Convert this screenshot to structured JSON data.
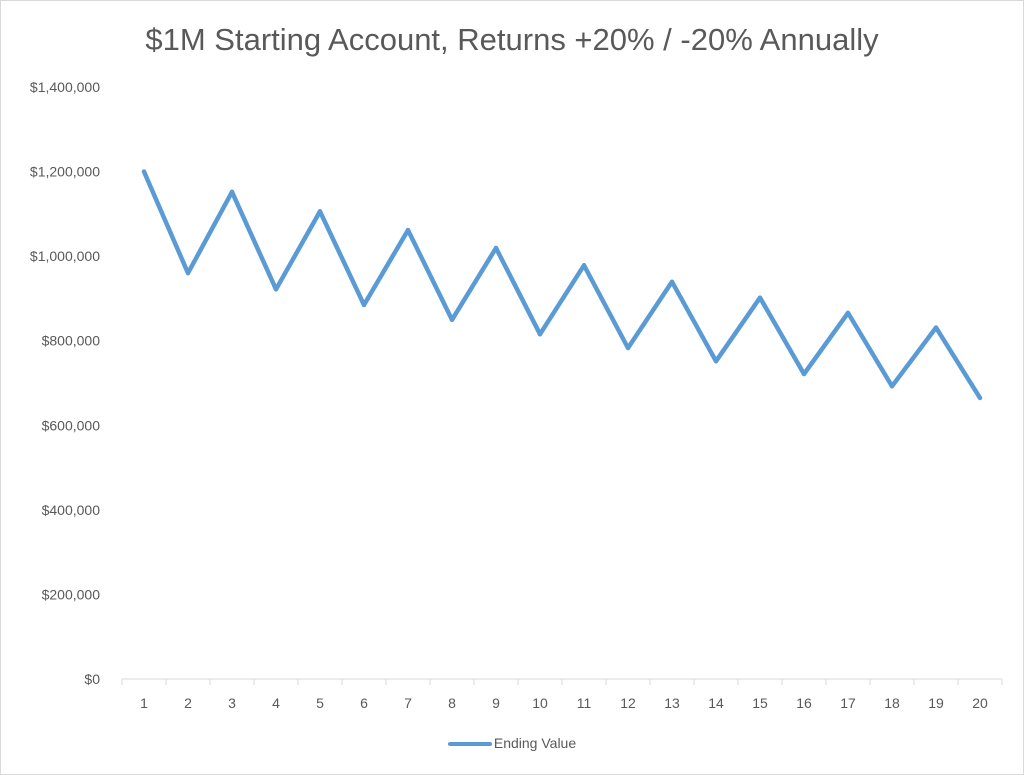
{
  "chart_data": {
    "type": "line",
    "title": "$1M Starting Account, Returns +20% / -20% Annually",
    "xlabel": "",
    "ylabel": "",
    "x": [
      1,
      2,
      3,
      4,
      5,
      6,
      7,
      8,
      9,
      10,
      11,
      12,
      13,
      14,
      15,
      16,
      17,
      18,
      19,
      20
    ],
    "ylim": [
      0,
      1400000
    ],
    "y_ticks": [
      {
        "value": 0,
        "label": "$0"
      },
      {
        "value": 200000,
        "label": "$200,000"
      },
      {
        "value": 400000,
        "label": "$400,000"
      },
      {
        "value": 600000,
        "label": "$600,000"
      },
      {
        "value": 800000,
        "label": "$800,000"
      },
      {
        "value": 1000000,
        "label": "$1,000,000"
      },
      {
        "value": 1200000,
        "label": "$1,200,000"
      },
      {
        "value": 1400000,
        "label": "$1,400,000"
      }
    ],
    "grid": false,
    "legend_position": "bottom",
    "series": [
      {
        "name": "Ending Value",
        "color": "#5b9bd5",
        "values": [
          1200000,
          960000,
          1152000,
          921600,
          1105920,
          884736,
          1061683,
          849347,
          1019216,
          815373,
          978447,
          782758,
          939310,
          751448,
          901737,
          721390,
          865668,
          692534,
          831041,
          664833
        ]
      }
    ]
  }
}
